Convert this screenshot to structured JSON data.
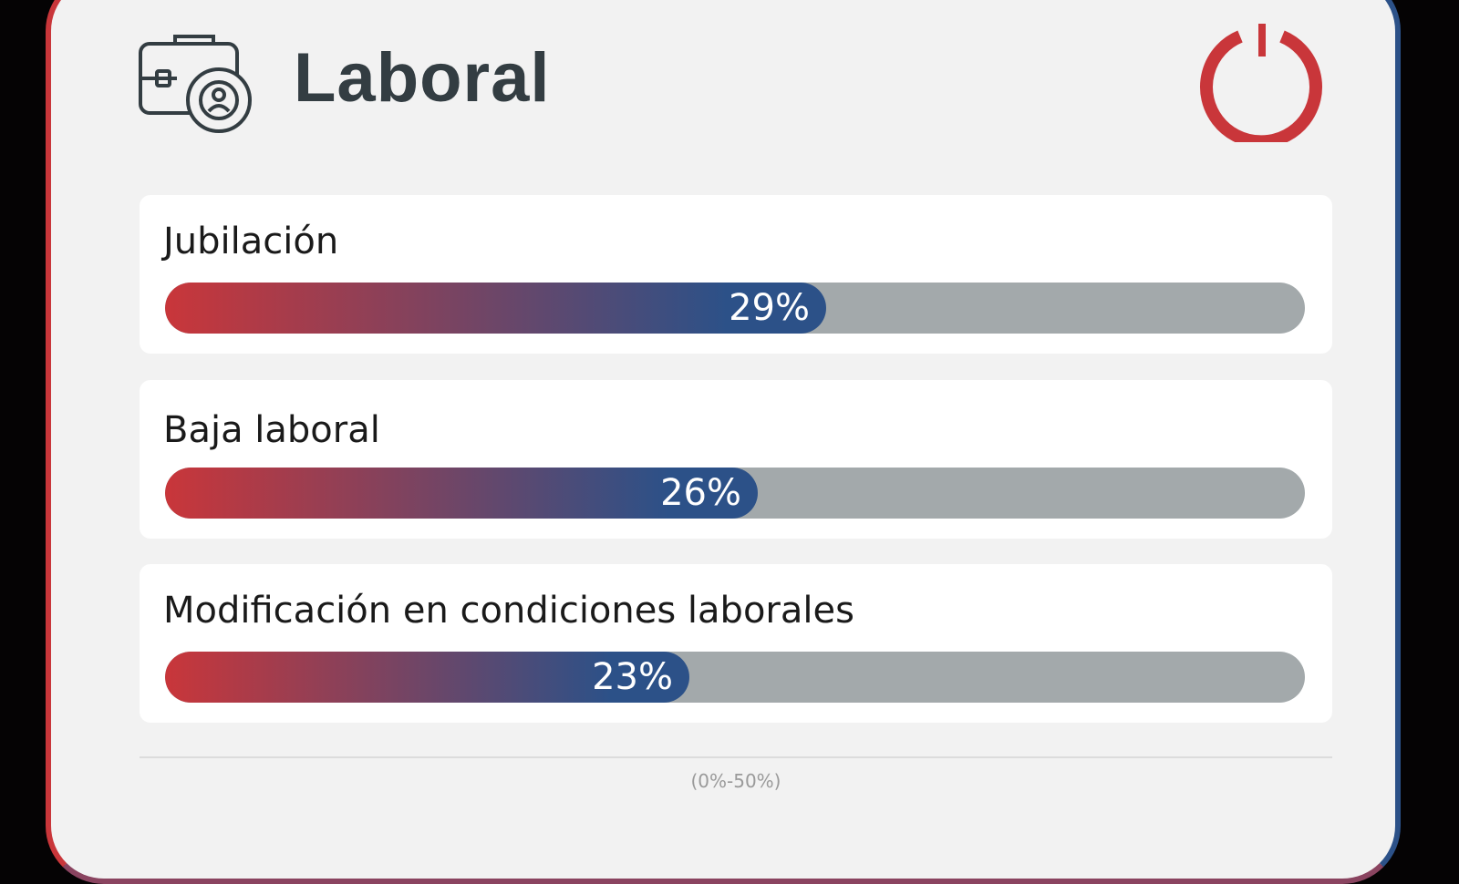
{
  "chart_data": {
    "type": "bar",
    "orientation": "horizontal",
    "title": "Laboral",
    "categories": [
      "Jubilación",
      "Baja laboral",
      "Modificación en condiciones laborales"
    ],
    "values": [
      29,
      26,
      23
    ],
    "value_labels": [
      "29%",
      "26%",
      "23%"
    ],
    "color_start": "#c9363a",
    "color_end": "#2c5188",
    "track_color": "#a3a9ab",
    "xlim": [
      0,
      50
    ],
    "range_note": "(0%-50%)"
  }
}
